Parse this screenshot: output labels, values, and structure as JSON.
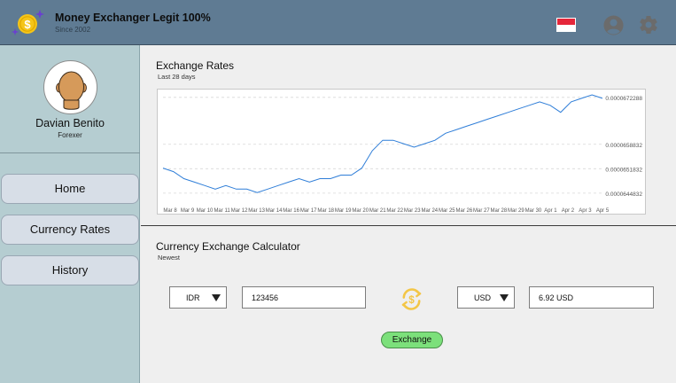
{
  "header": {
    "title": "Money Exchanger Legit 100%",
    "subtitle": "Since 2002",
    "logo_icon": "dollar-coin-icon",
    "flag_icon": "indonesia-flag-icon",
    "account_icon": "account-circle-icon",
    "settings_icon": "gear-icon",
    "colors": {
      "bar": "#5f7b93",
      "coin": "#f5c518",
      "sparkle": "#6a3fd1"
    }
  },
  "sidebar": {
    "user_name": "Davian Benito",
    "user_role": "Forexer",
    "nav": [
      {
        "label": "Home"
      },
      {
        "label": "Currency Rates"
      },
      {
        "label": "History"
      }
    ]
  },
  "rates": {
    "title": "Exchange Rates",
    "subtitle": "Last 28 days"
  },
  "chart_data": {
    "type": "line",
    "title": "",
    "xlabel": "",
    "ylabel": "",
    "x_ticks": [
      "Mar 8",
      "Mar 9",
      "Mar 10",
      "Mar 11",
      "Mar 12",
      "Mar 13",
      "Mar 14",
      "Mar 16",
      "Mar 17",
      "Mar 18",
      "Mar 19",
      "Mar 20",
      "Mar 21",
      "Mar 22",
      "Mar 23",
      "Mar 24",
      "Mar 25",
      "Mar 26",
      "Mar 27",
      "Mar 28",
      "Mar 29",
      "Mar 30",
      "Apr 1",
      "Apr 2",
      "Apr 3",
      "Apr 5"
    ],
    "y_ticks": [
      "0.0000644832",
      "0.0000651832",
      "0.0000658832",
      "0.0000672288"
    ],
    "ylim": [
      6.42e-05,
      6.73e-05
    ],
    "grid": true,
    "line_color": "#2f7ed8",
    "series": [
      {
        "values": [
          6.52e-05,
          6.51e-05,
          6.49e-05,
          6.48e-05,
          6.47e-05,
          6.46e-05,
          6.47e-05,
          6.46e-05,
          6.46e-05,
          6.45e-05,
          6.46e-05,
          6.47e-05,
          6.48e-05,
          6.49e-05,
          6.48e-05,
          6.49e-05,
          6.49e-05,
          6.5e-05,
          6.5e-05,
          6.52e-05,
          6.57e-05,
          6.6e-05,
          6.6e-05,
          6.59e-05,
          6.58e-05,
          6.59e-05,
          6.6e-05,
          6.62e-05,
          6.63e-05,
          6.64e-05,
          6.65e-05,
          6.66e-05,
          6.67e-05,
          6.68e-05,
          6.69e-05,
          6.7e-05,
          6.71e-05,
          6.7e-05,
          6.68e-05,
          6.71e-05,
          6.72e-05,
          6.73e-05,
          6.72e-05
        ]
      }
    ]
  },
  "calculator": {
    "title": "Currency Exchange Calculator",
    "subtitle": "Newest",
    "from_currency": "IDR",
    "from_amount": "123456",
    "to_currency": "USD",
    "result": "6.92 USD",
    "swap_icon": "currency-swap-icon",
    "button_label": "Exchange",
    "colors": {
      "button": "#7ce07b",
      "swap": "#f3c646"
    }
  }
}
